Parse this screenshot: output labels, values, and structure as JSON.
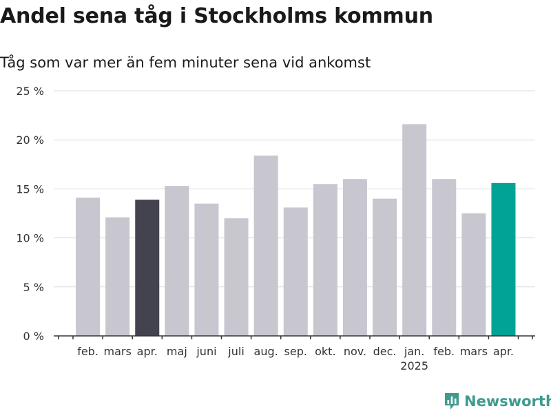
{
  "title": "Andel sena tåg i Stockholms kommun",
  "subtitle": "Tåg som var mer än fem minuter sena vid ankomst",
  "brand": "Newsworthy",
  "colors": {
    "bar": "#c8c7d0",
    "highlight_dark": "#43424f",
    "highlight_accent": "#00a396",
    "grid": "#dcdcdc",
    "axis": "#333333",
    "brand": "#3f9b8e"
  },
  "chart_data": {
    "type": "bar",
    "title": "",
    "xlabel": "",
    "ylabel": "",
    "ylim": [
      0,
      25
    ],
    "yticks": [
      0,
      5,
      10,
      15,
      20,
      25
    ],
    "ytick_labels": [
      "0 %",
      "5 %",
      "10 %",
      "15 %",
      "20 %",
      "25 %"
    ],
    "categories": [
      "feb.",
      "mars",
      "apr.",
      "maj",
      "juni",
      "juli",
      "aug.",
      "sep.",
      "okt.",
      "nov.",
      "dec.",
      "jan.",
      "feb.",
      "mars",
      "apr."
    ],
    "year_labels": [
      "",
      "",
      "",
      "",
      "",
      "",
      "",
      "",
      "",
      "",
      "",
      "2025",
      "",
      "",
      ""
    ],
    "values": [
      14.1,
      12.1,
      13.9,
      15.3,
      13.5,
      12.0,
      18.4,
      13.1,
      15.5,
      16.0,
      14.0,
      21.6,
      16.0,
      12.5,
      15.6
    ],
    "highlight": [
      "",
      "",
      "dark",
      "",
      "",
      "",
      "",
      "",
      "",
      "",
      "",
      "",
      "",
      "",
      "accent"
    ],
    "grid": true
  }
}
